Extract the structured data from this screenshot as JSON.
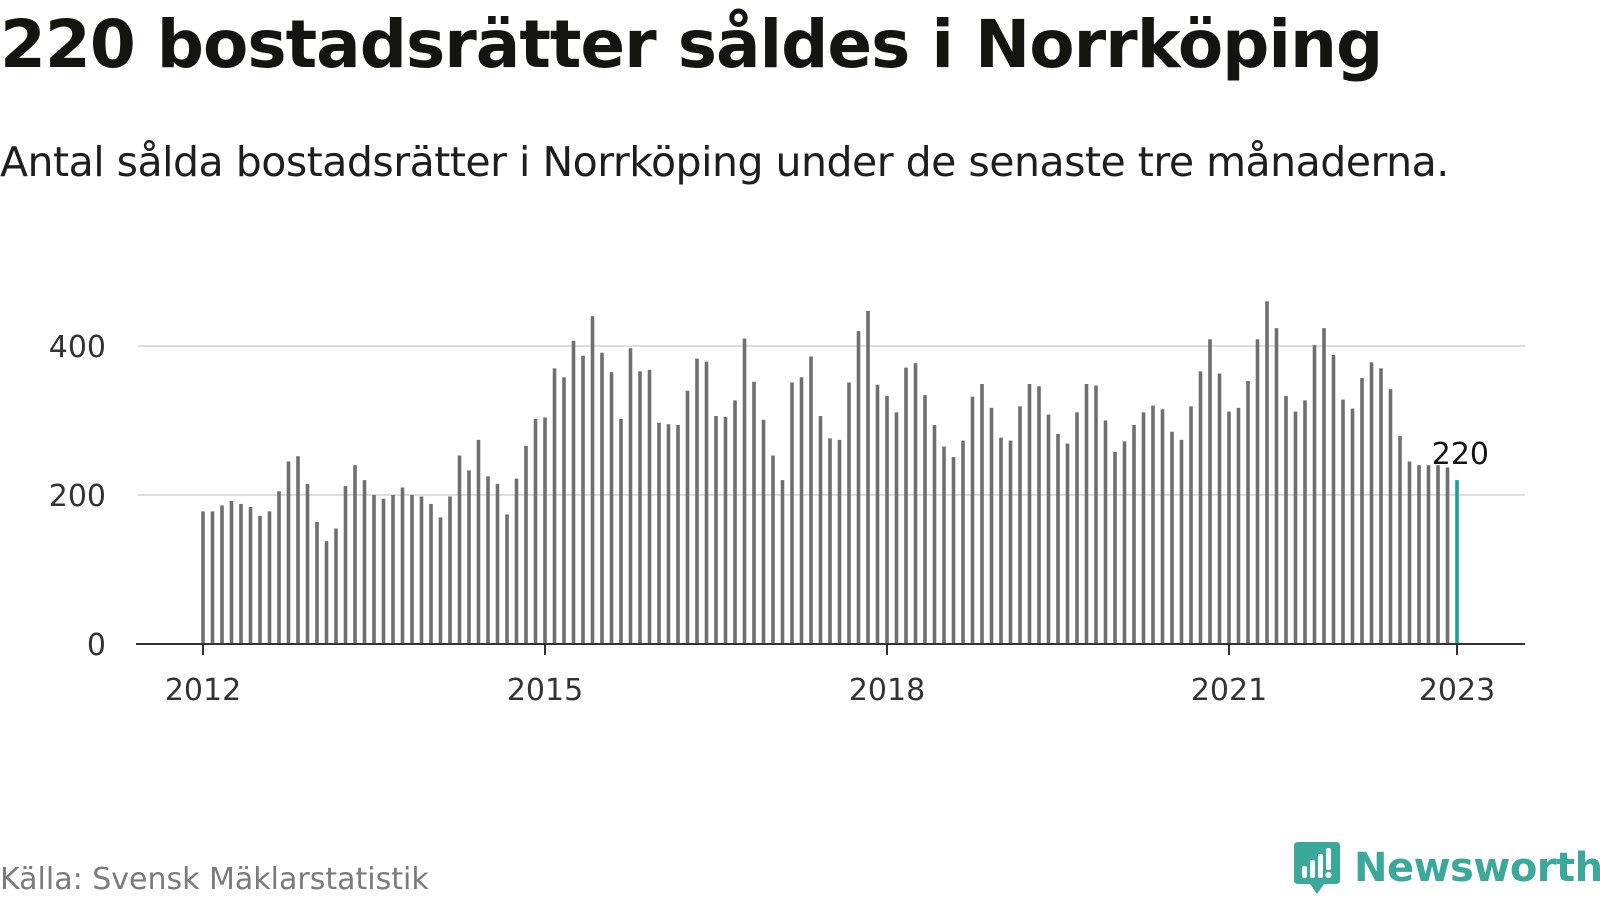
{
  "header": {
    "title": "220 bostadsrätter såldes i Norrköping",
    "subtitle": "Antal sålda bostadsrätter i Norrköping under de senaste tre månaderna."
  },
  "footer": {
    "source": "Källa: Svensk Mäklarstatistik",
    "brand": "Newsworthy",
    "brand_icon": "newsworthy-logo-icon"
  },
  "colors": {
    "bar": "#6e6e73",
    "highlight": "#1e9e96",
    "grid": "#dddddd",
    "axis": "#333333",
    "brand": "#3ba89c"
  },
  "chart_data": {
    "type": "bar",
    "title": "220 bostadsrätter såldes i Norrköping",
    "subtitle": "Antal sålda bostadsrätter i Norrköping under de senaste tre månaderna.",
    "x_start": "2012-01",
    "x_tick_labels": [
      "2012",
      "2015",
      "2018",
      "2021",
      "2023"
    ],
    "y_ticks": [
      0,
      200,
      400
    ],
    "ylim": [
      0,
      460
    ],
    "grid": true,
    "last_value_label": "220",
    "values": [
      178,
      178,
      186,
      192,
      188,
      184,
      172,
      178,
      205,
      245,
      252,
      215,
      164,
      138,
      155,
      212,
      240,
      220,
      200,
      195,
      200,
      210,
      200,
      198,
      188,
      170,
      198,
      253,
      233,
      274,
      225,
      215,
      174,
      222,
      266,
      302,
      304,
      370,
      358,
      407,
      387,
      440,
      391,
      365,
      302,
      397,
      366,
      368,
      297,
      295,
      294,
      340,
      383,
      379,
      306,
      305,
      327,
      410,
      352,
      301,
      253,
      220,
      351,
      358,
      386,
      306,
      276,
      274,
      351,
      420,
      447,
      348,
      333,
      311,
      371,
      377,
      334,
      294,
      265,
      251,
      273,
      332,
      349,
      317,
      277,
      273,
      319,
      349,
      346,
      308,
      282,
      269,
      311,
      349,
      347,
      300,
      258,
      272,
      294,
      311,
      320,
      315,
      285,
      274,
      319,
      366,
      409,
      363,
      312,
      317,
      353,
      409,
      460,
      424,
      333,
      312,
      327,
      401,
      424,
      388,
      328,
      316,
      357,
      378,
      370,
      342,
      279,
      245,
      240,
      240,
      240,
      237,
      220
    ],
    "highlight_last": true
  }
}
